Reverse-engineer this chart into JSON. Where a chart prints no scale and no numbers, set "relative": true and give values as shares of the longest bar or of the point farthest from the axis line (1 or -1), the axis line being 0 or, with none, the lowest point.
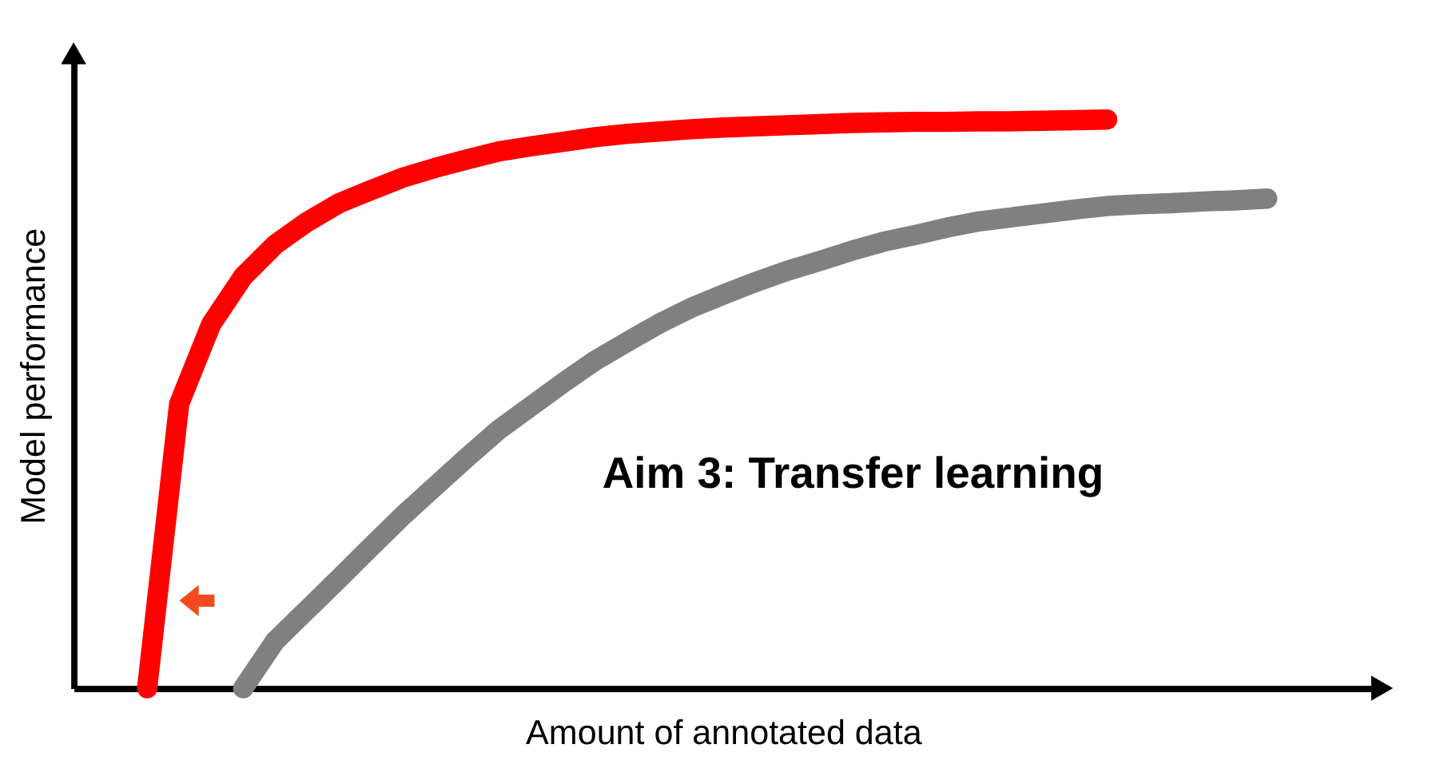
{
  "chart_data": {
    "type": "line",
    "relative": true,
    "xlabel": "Amount of annotated data",
    "ylabel": "Model performance",
    "tick_labels": false,
    "grid": false,
    "legend": false,
    "line_style": "solid",
    "annotations": [
      "Aim 3: Transfer learning"
    ],
    "categories": [
      null,
      null,
      null,
      null,
      null,
      null,
      null,
      null,
      null,
      null,
      null,
      null,
      null,
      null,
      null,
      null,
      null,
      null,
      null,
      null,
      null,
      null,
      null,
      null,
      null,
      null,
      null,
      null,
      null,
      null,
      null,
      null,
      null,
      null,
      null,
      null,
      null,
      null,
      null,
      null,
      null
    ],
    "series": [
      {
        "color": "#ff0000",
        "values": [
          null,
          null,
          0,
          0.5,
          0.64,
          0.724,
          0.78,
          0.82,
          0.853,
          0.876,
          0.898,
          0.915,
          0.93,
          0.944,
          0.953,
          0.961,
          0.969,
          0.975,
          0.979,
          0.983,
          0.986,
          0.988,
          0.99,
          0.992,
          0.994,
          0.995,
          0.996,
          0.996,
          0.997,
          0.997,
          0.998,
          0.999,
          1,
          null,
          null,
          null,
          null,
          null,
          null,
          null,
          null
        ]
      },
      {
        "color": "#808080",
        "values": [
          null,
          null,
          null,
          null,
          null,
          0,
          0.083,
          0.138,
          0.193,
          0.249,
          0.304,
          0.355,
          0.406,
          0.455,
          0.496,
          0.537,
          0.576,
          0.609,
          0.641,
          0.669,
          0.692,
          0.714,
          0.734,
          0.751,
          0.769,
          0.785,
          0.797,
          0.81,
          0.821,
          0.828,
          0.835,
          0.842,
          0.848,
          0.851,
          0.853,
          0.856,
          0.858,
          0.861,
          null,
          null,
          null
        ]
      }
    ]
  }
}
